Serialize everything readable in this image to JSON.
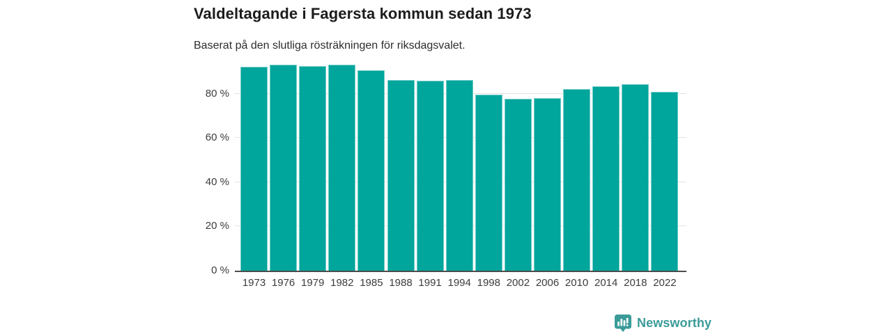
{
  "header": {
    "title": "Valdeltagande i Fagersta kommun sedan 1973",
    "subtitle": "Baserat på den slutliga rösträkningen för riksdagsvalet."
  },
  "chart_data": {
    "type": "bar",
    "title": "Valdeltagande i Fagersta kommun sedan 1973",
    "subtitle": "Baserat på den slutliga rösträkningen för riksdagsvalet.",
    "unit": "%",
    "categories": [
      "1973",
      "1976",
      "1979",
      "1982",
      "1985",
      "1988",
      "1991",
      "1994",
      "1998",
      "2002",
      "2006",
      "2010",
      "2014",
      "2018",
      "2022"
    ],
    "values": [
      92.2,
      93.0,
      92.4,
      93.0,
      90.6,
      86.3,
      85.7,
      86.2,
      79.5,
      77.6,
      78.1,
      82.0,
      83.4,
      84.4,
      80.7
    ],
    "ylim": [
      0,
      100
    ],
    "yticks": [
      0,
      20,
      40,
      60,
      80
    ],
    "ytick_suffix": " %",
    "grid": true,
    "legend": false,
    "bar_color": "#00a59c",
    "axis_color": "#4c4c4c",
    "gridline_color": "#e3e3e3"
  },
  "branding": {
    "logo_text": "Newsworthy",
    "logo_color": "#3b9b99",
    "logo_icon": "newsworthy-speech-bubble-bar-chart-icon"
  }
}
